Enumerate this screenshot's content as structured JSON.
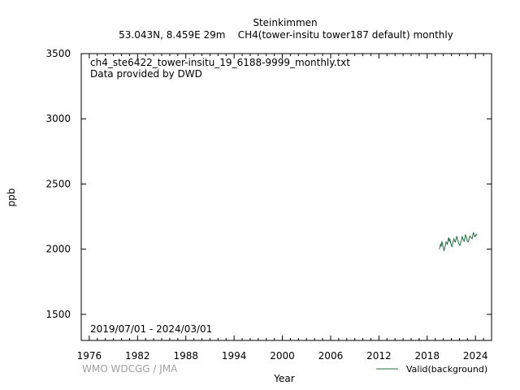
{
  "header": {
    "station": "Steinkimmen",
    "subtitle": "53.043N, 8.459E 29m    CH4(tower-insitu tower187 default) monthly"
  },
  "annotations": {
    "filename": "ch4_ste6422_tower-insitu_19_6188-9999_monthly.txt",
    "provider": "Data provided by DWD",
    "date_range": "2019/07/01 - 2024/03/01"
  },
  "footer": {
    "credit": "WMO WDCGG / JMA"
  },
  "colors": {
    "series": "#1b6e3e",
    "credit": "#a0a0a0"
  },
  "chart_data": {
    "type": "line",
    "title": "Steinkimmen",
    "xlabel": "Year",
    "ylabel": "ppb",
    "xlim": [
      1975,
      2026
    ],
    "ylim": [
      1300,
      3500
    ],
    "x_ticks": [
      1976,
      1982,
      1988,
      1994,
      2000,
      2006,
      2012,
      2018,
      2024
    ],
    "x_minor_step": 1,
    "y_ticks": [
      1500,
      2000,
      2500,
      3000,
      3500
    ],
    "grid": false,
    "legend_position": "bottom-right",
    "series": [
      {
        "name": "Valid(background)",
        "x": [
          "2019-07",
          "2019-08",
          "2019-09",
          "2019-10",
          "2019-11",
          "2019-12",
          "2020-01",
          "2020-02",
          "2020-03",
          "2020-04",
          "2020-05",
          "2020-06",
          "2020-07",
          "2020-08",
          "2020-09",
          "2020-10",
          "2020-11",
          "2020-12",
          "2021-01",
          "2021-02",
          "2021-03",
          "2021-04",
          "2021-05",
          "2021-06",
          "2021-07",
          "2021-08",
          "2021-09",
          "2021-10",
          "2021-11",
          "2021-12",
          "2022-01",
          "2022-02",
          "2022-03",
          "2022-04",
          "2022-05",
          "2022-06",
          "2022-07",
          "2022-08",
          "2022-09",
          "2022-10",
          "2022-11",
          "2022-12",
          "2023-01",
          "2023-02",
          "2023-03",
          "2023-04",
          "2023-05",
          "2023-06",
          "2023-07",
          "2023-08",
          "2023-09",
          "2023-10",
          "2023-11",
          "2023-12",
          "2024-01",
          "2024-02",
          "2024-03"
        ],
        "values": [
          2000,
          2015,
          2040,
          2020,
          2060,
          2035,
          2010,
          1990,
          2005,
          2030,
          2055,
          2050,
          2035,
          2065,
          2090,
          2060,
          2075,
          2050,
          2030,
          2020,
          2045,
          2065,
          2080,
          2060,
          2055,
          2075,
          2100,
          2080,
          2065,
          2045,
          2035,
          2030,
          2050,
          2070,
          2095,
          2085,
          2070,
          2060,
          2080,
          2110,
          2100,
          2080,
          2060,
          2055,
          2070,
          2095,
          2100,
          2090,
          2085,
          2080,
          2105,
          2130,
          2110,
          2095,
          2100,
          2115,
          2105
        ]
      }
    ]
  }
}
